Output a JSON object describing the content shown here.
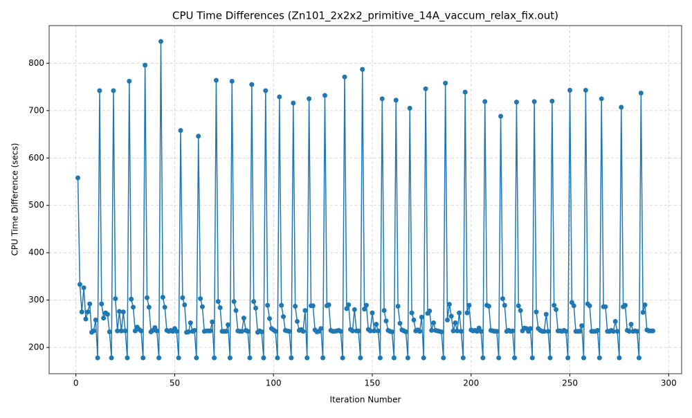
{
  "chart_data": {
    "type": "line",
    "title": "CPU Time Differences (Zn101_2x2x2_primitive_14A_vaccum_relax_fix.out)",
    "xlabel": "Iteration Number",
    "ylabel": "CPU Time Difference (secs)",
    "grid": true,
    "xlim": [
      -13.55,
      306.55
    ],
    "ylim": [
      144.6,
      879.4
    ],
    "xticks": [
      0,
      50,
      100,
      150,
      200,
      250,
      300
    ],
    "yticks": [
      200,
      300,
      400,
      500,
      600,
      700,
      800
    ],
    "series": [
      {
        "color": "#1f77b4",
        "x": [
          1,
          2,
          3,
          4,
          5,
          6,
          7,
          8,
          9,
          10,
          11,
          12,
          13,
          14,
          15,
          16,
          17,
          18,
          19,
          20,
          21,
          22,
          23,
          24,
          25,
          26,
          27,
          28,
          29,
          30,
          31,
          32,
          33,
          34,
          35,
          36,
          37,
          38,
          39,
          40,
          41,
          42,
          43,
          44,
          45,
          46,
          47,
          48,
          49,
          50,
          51,
          52,
          53,
          54,
          55,
          56,
          57,
          58,
          59,
          60,
          61,
          62,
          63,
          64,
          65,
          66,
          67,
          68,
          69,
          70,
          71,
          72,
          73,
          74,
          75,
          76,
          77,
          78,
          79,
          80,
          81,
          82,
          83,
          84,
          85,
          86,
          87,
          88,
          89,
          90,
          91,
          92,
          93,
          94,
          95,
          96,
          97,
          98,
          99,
          100,
          101,
          102,
          103,
          104,
          105,
          106,
          107,
          108,
          109,
          110,
          111,
          112,
          113,
          114,
          115,
          116,
          117,
          118,
          119,
          120,
          121,
          122,
          123,
          124,
          125,
          126,
          127,
          128,
          129,
          130,
          131,
          132,
          133,
          134,
          135,
          136,
          137,
          138,
          139,
          140,
          141,
          142,
          143,
          144,
          145,
          146,
          147,
          148,
          149,
          150,
          151,
          152,
          153,
          154,
          155,
          156,
          157,
          158,
          159,
          160,
          161,
          162,
          163,
          164,
          165,
          166,
          167,
          168,
          169,
          170,
          171,
          172,
          173,
          174,
          175,
          176,
          177,
          178,
          179,
          180,
          181,
          182,
          183,
          184,
          185,
          186,
          187,
          188,
          189,
          190,
          191,
          192,
          193,
          194,
          195,
          196,
          197,
          198,
          199,
          200,
          201,
          202,
          203,
          204,
          205,
          206,
          207,
          208,
          209,
          210,
          211,
          212,
          213,
          214,
          215,
          216,
          217,
          218,
          219,
          220,
          221,
          222,
          223,
          224,
          225,
          226,
          227,
          228,
          229,
          230,
          231,
          232,
          233,
          234,
          235,
          236,
          237,
          238,
          239,
          240,
          241,
          242,
          243,
          244,
          245,
          246,
          247,
          248,
          249,
          250,
          251,
          252,
          253,
          254,
          255,
          256,
          257,
          258,
          259,
          260,
          261,
          262,
          263,
          264,
          265,
          266,
          267,
          268,
          269,
          270,
          271,
          272,
          273,
          274,
          275,
          276,
          277,
          278,
          279,
          280,
          281,
          282,
          283,
          284,
          285,
          286,
          287,
          288,
          289,
          290,
          291,
          292
        ],
        "values": [
          558,
          333,
          275,
          326,
          260,
          275,
          292,
          232,
          235,
          258,
          178,
          742,
          292,
          262,
          273,
          270,
          233,
          178,
          742,
          303,
          235,
          276,
          235,
          275,
          235,
          178,
          762,
          302,
          285,
          235,
          243,
          238,
          235,
          178,
          796,
          305,
          285,
          233,
          236,
          242,
          235,
          178,
          846,
          306,
          285,
          236,
          234,
          236,
          234,
          240,
          234,
          178,
          658,
          305,
          290,
          232,
          233,
          252,
          234,
          236,
          178,
          646,
          303,
          286,
          234,
          235,
          235,
          235,
          254,
          178,
          764,
          297,
          284,
          234,
          234,
          234,
          248,
          178,
          762,
          297,
          278,
          235,
          234,
          234,
          262,
          236,
          234,
          178,
          755,
          297,
          283,
          232,
          235,
          233,
          178,
          742,
          289,
          261,
          240,
          237,
          234,
          178,
          729,
          289,
          265,
          236,
          235,
          234,
          178,
          716,
          287,
          255,
          236,
          238,
          234,
          278,
          178,
          725,
          288,
          288,
          237,
          233,
          234,
          240,
          178,
          732,
          288,
          290,
          236,
          234,
          234,
          235,
          236,
          234,
          178,
          771,
          282,
          290,
          238,
          235,
          280,
          235,
          235,
          178,
          787,
          281,
          289,
          238,
          235,
          273,
          235,
          249,
          235,
          178,
          725,
          278,
          256,
          236,
          234,
          233,
          178,
          722,
          287,
          251,
          237,
          235,
          233,
          178,
          705,
          273,
          258,
          235,
          237,
          234,
          264,
          178,
          746,
          272,
          277,
          236,
          252,
          236,
          235,
          234,
          233,
          178,
          758,
          258,
          291,
          266,
          235,
          252,
          235,
          273,
          234,
          178,
          739,
          273,
          289,
          237,
          235,
          236,
          234,
          241,
          234,
          178,
          719,
          289,
          287,
          236,
          235,
          234,
          234,
          178,
          688,
          303,
          289,
          234,
          236,
          234,
          235,
          178,
          718,
          288,
          278,
          235,
          241,
          240,
          234,
          240,
          178,
          719,
          275,
          240,
          236,
          234,
          234,
          270,
          234,
          178,
          720,
          289,
          280,
          235,
          235,
          234,
          236,
          234,
          178,
          743,
          295,
          288,
          234,
          234,
          234,
          246,
          178,
          743,
          292,
          288,
          234,
          234,
          234,
          236,
          178,
          725,
          286,
          286,
          234,
          234,
          236,
          234,
          255,
          234,
          178,
          707,
          286,
          289,
          236,
          234,
          249,
          234,
          235,
          234,
          178,
          737,
          274,
          290,
          237,
          235,
          235,
          235
        ]
      }
    ]
  }
}
